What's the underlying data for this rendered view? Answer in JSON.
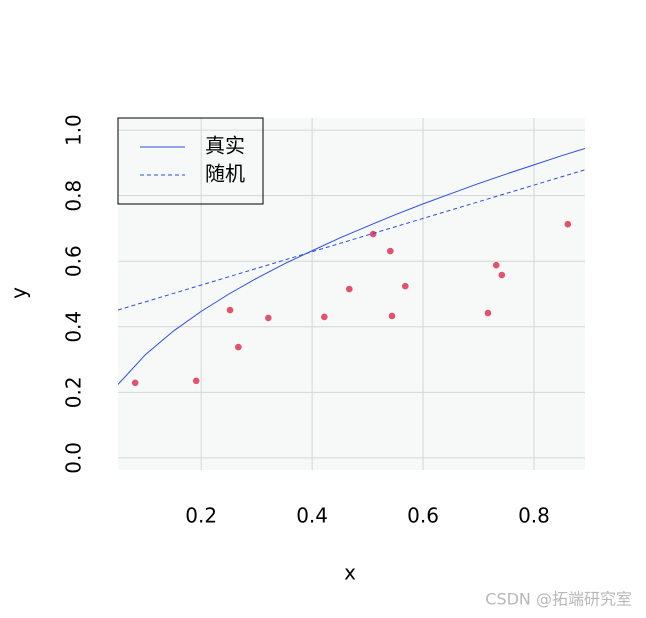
{
  "chart_data": {
    "type": "scatter",
    "xlabel": "x",
    "ylabel": "y",
    "xlim": [
      0.05,
      0.892
    ],
    "ylim": [
      -0.037,
      1.037
    ],
    "xticks": [
      0.2,
      0.4,
      0.6,
      0.8
    ],
    "yticks": [
      {
        "value": 0,
        "label": "0.0"
      },
      0.2,
      0.4,
      0.6,
      0.8,
      {
        "value": 1,
        "label": "1.0"
      }
    ],
    "grid": true,
    "legend": "topleft",
    "series": [
      {
        "mode": "points",
        "color": "#df536b",
        "x": [
          0.081,
          0.191,
          0.252,
          0.267,
          0.321,
          0.422,
          0.467,
          0.51,
          0.541,
          0.544,
          0.568,
          0.717,
          0.732,
          0.742,
          0.861
        ],
        "values": [
          0.229,
          0.235,
          0.451,
          0.338,
          0.427,
          0.43,
          0.515,
          0.683,
          0.631,
          0.433,
          0.524,
          0.442,
          0.588,
          0.558,
          0.713
        ]
      },
      {
        "name": "真实",
        "mode": "line",
        "linestyle": "solid",
        "color": "#2a4ee0",
        "x": [
          0.05,
          0.1,
          0.15,
          0.2,
          0.25,
          0.3,
          0.35,
          0.4,
          0.45,
          0.5,
          0.55,
          0.6,
          0.65,
          0.7,
          0.75,
          0.8,
          0.85,
          0.892
        ],
        "values": [
          0.224,
          0.316,
          0.387,
          0.447,
          0.5,
          0.548,
          0.592,
          0.632,
          0.671,
          0.707,
          0.742,
          0.775,
          0.806,
          0.837,
          0.866,
          0.894,
          0.922,
          0.944
        ]
      },
      {
        "name": "随机",
        "mode": "line",
        "linestyle": "dashed",
        "color": "#2a4ee0",
        "x": [
          0.05,
          0.892
        ],
        "values": [
          0.451,
          0.879
        ]
      }
    ]
  },
  "watermark": "CSDN @拓端研究室"
}
